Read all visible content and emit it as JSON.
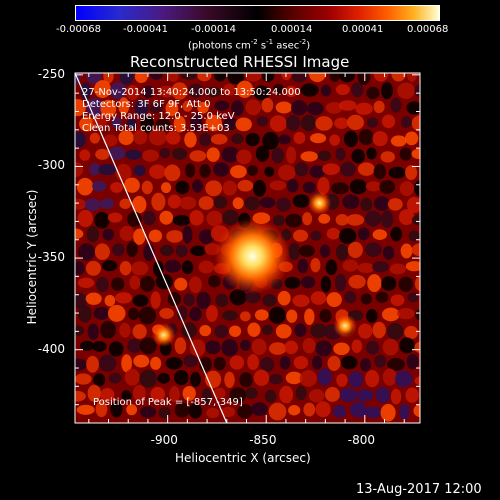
{
  "colorbar": {
    "ticks": [
      "-0.00068",
      "-0.00041",
      "-0.00014",
      "0.00014",
      "0.00041",
      "0.00068"
    ],
    "units_text": "(photons cm",
    "units_sup1": "-2",
    "units_mid": " s",
    "units_sup2": "-1",
    "units_end": " asec",
    "units_sup3": "-2",
    "units_close": ")"
  },
  "title": "Reconstructed RHESSI Image",
  "info": {
    "line1": "27-Nov-2014 13:40:24.000 to 13:50:24.000",
    "line2": "Detectors: 3F 6F 9F, Att 0",
    "line3": "Energy Range: 12.0 - 25.0 keV",
    "line4": "Clean     Total counts: 3.53E+03"
  },
  "peak_label": "Position of Peak = [-857,-349]",
  "datestamp": "13-Aug-2017 12:00",
  "chart_data": {
    "type": "heatmap",
    "title": "Reconstructed RHESSI Image",
    "xlabel": "Heliocentric X (arcsec)",
    "ylabel": "Heliocentric Y (arcsec)",
    "xlim": [
      -947,
      -772
    ],
    "ylim": [
      -440,
      -249
    ],
    "x_ticks": [
      "-900",
      "-850",
      "-800"
    ],
    "x_tick_values": [
      -900,
      -850,
      -800
    ],
    "y_ticks": [
      "-250",
      "-300",
      "-350",
      "-400"
    ],
    "y_tick_values": [
      -250,
      -300,
      -350,
      -400
    ],
    "color_range": [
      -0.00068,
      0.00068
    ],
    "colormap": "blue-black-red-yellow-white",
    "peak": {
      "x": -857,
      "y": -349
    },
    "secondary_sources": [
      {
        "x": -823,
        "y": -320
      },
      {
        "x": -810,
        "y": -387
      },
      {
        "x": -902,
        "y": -392
      }
    ],
    "limb_line": {
      "x": [
        -947,
        -870
      ],
      "y": [
        -249,
        -440
      ]
    },
    "grid": false
  }
}
